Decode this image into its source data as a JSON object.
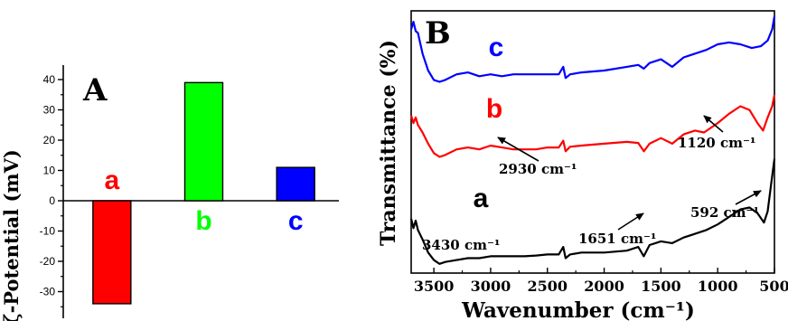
{
  "chart_data": [
    {
      "panel_label": "A",
      "type": "bar",
      "categories": [
        "a",
        "b",
        "c"
      ],
      "values": [
        -34,
        39,
        11
      ],
      "colors": [
        "#ff0000",
        "#00ff00",
        "#0000ff"
      ],
      "ylabel": "ζ-Potential (mV)",
      "ylim": [
        -40,
        45
      ],
      "yticks": [
        "40",
        "30",
        "20",
        "10",
        "0",
        "-10",
        "-20",
        "-30"
      ],
      "grid": false
    },
    {
      "panel_label": "B",
      "type": "line",
      "xlabel": "Wavenumber (cm⁻¹)",
      "ylabel": "Transmittance (%)",
      "xlim": [
        3700,
        500
      ],
      "xticks": [
        "3500",
        "3000",
        "2500",
        "2000",
        "1500",
        "1000",
        "500"
      ],
      "grid": false,
      "series": [
        {
          "name": "c",
          "color": "#0000ff",
          "points": [
            [
              3700,
              3.75
            ],
            [
              3680,
              3.95
            ],
            [
              3660,
              3.7
            ],
            [
              3640,
              3.65
            ],
            [
              3600,
              3.1
            ],
            [
              3550,
              2.65
            ],
            [
              3500,
              2.4
            ],
            [
              3450,
              2.35
            ],
            [
              3400,
              2.4
            ],
            [
              3300,
              2.55
            ],
            [
              3200,
              2.6
            ],
            [
              3100,
              2.5
            ],
            [
              3000,
              2.55
            ],
            [
              2900,
              2.5
            ],
            [
              2800,
              2.55
            ],
            [
              2700,
              2.55
            ],
            [
              2600,
              2.55
            ],
            [
              2500,
              2.55
            ],
            [
              2400,
              2.55
            ],
            [
              2360,
              2.75
            ],
            [
              2340,
              2.45
            ],
            [
              2300,
              2.55
            ],
            [
              2200,
              2.6
            ],
            [
              2000,
              2.65
            ],
            [
              1800,
              2.75
            ],
            [
              1700,
              2.8
            ],
            [
              1650,
              2.7
            ],
            [
              1600,
              2.85
            ],
            [
              1500,
              2.95
            ],
            [
              1400,
              2.75
            ],
            [
              1300,
              3.0
            ],
            [
              1200,
              3.1
            ],
            [
              1100,
              3.2
            ],
            [
              1000,
              3.35
            ],
            [
              900,
              3.4
            ],
            [
              800,
              3.35
            ],
            [
              700,
              3.25
            ],
            [
              620,
              3.3
            ],
            [
              560,
              3.45
            ],
            [
              520,
              3.75
            ],
            [
              500,
              4.1
            ]
          ]
        },
        {
          "name": "b",
          "color": "#ff0000",
          "points": [
            [
              3700,
              1.45
            ],
            [
              3680,
              1.25
            ],
            [
              3660,
              1.4
            ],
            [
              3640,
              1.2
            ],
            [
              3600,
              1.0
            ],
            [
              3550,
              0.7
            ],
            [
              3500,
              0.45
            ],
            [
              3450,
              0.35
            ],
            [
              3400,
              0.4
            ],
            [
              3300,
              0.55
            ],
            [
              3200,
              0.6
            ],
            [
              3100,
              0.55
            ],
            [
              3000,
              0.65
            ],
            [
              2900,
              0.6
            ],
            [
              2800,
              0.55
            ],
            [
              2700,
              0.55
            ],
            [
              2600,
              0.55
            ],
            [
              2500,
              0.6
            ],
            [
              2400,
              0.6
            ],
            [
              2360,
              0.78
            ],
            [
              2340,
              0.5
            ],
            [
              2300,
              0.62
            ],
            [
              2200,
              0.65
            ],
            [
              2000,
              0.7
            ],
            [
              1800,
              0.75
            ],
            [
              1700,
              0.72
            ],
            [
              1650,
              0.5
            ],
            [
              1600,
              0.7
            ],
            [
              1500,
              0.85
            ],
            [
              1400,
              0.7
            ],
            [
              1300,
              0.95
            ],
            [
              1200,
              1.05
            ],
            [
              1120,
              1.0
            ],
            [
              1000,
              1.25
            ],
            [
              900,
              1.5
            ],
            [
              800,
              1.7
            ],
            [
              720,
              1.6
            ],
            [
              650,
              1.25
            ],
            [
              600,
              1.05
            ],
            [
              560,
              1.4
            ],
            [
              520,
              1.7
            ],
            [
              500,
              2.0
            ]
          ]
        },
        {
          "name": "a",
          "color": "#000000",
          "points": [
            [
              3700,
              -1.3
            ],
            [
              3680,
              -1.55
            ],
            [
              3660,
              -1.35
            ],
            [
              3640,
              -1.6
            ],
            [
              3600,
              -1.85
            ],
            [
              3550,
              -2.2
            ],
            [
              3500,
              -2.4
            ],
            [
              3450,
              -2.5
            ],
            [
              3400,
              -2.45
            ],
            [
              3300,
              -2.4
            ],
            [
              3200,
              -2.35
            ],
            [
              3100,
              -2.35
            ],
            [
              3000,
              -2.3
            ],
            [
              2900,
              -2.3
            ],
            [
              2800,
              -2.3
            ],
            [
              2700,
              -2.3
            ],
            [
              2600,
              -2.28
            ],
            [
              2500,
              -2.25
            ],
            [
              2400,
              -2.25
            ],
            [
              2360,
              -2.05
            ],
            [
              2340,
              -2.35
            ],
            [
              2300,
              -2.25
            ],
            [
              2200,
              -2.2
            ],
            [
              2000,
              -2.2
            ],
            [
              1800,
              -2.15
            ],
            [
              1700,
              -2.05
            ],
            [
              1651,
              -2.3
            ],
            [
              1600,
              -2.0
            ],
            [
              1500,
              -1.9
            ],
            [
              1400,
              -1.95
            ],
            [
              1300,
              -1.8
            ],
            [
              1200,
              -1.7
            ],
            [
              1100,
              -1.6
            ],
            [
              1000,
              -1.45
            ],
            [
              900,
              -1.25
            ],
            [
              800,
              -1.05
            ],
            [
              720,
              -1.0
            ],
            [
              650,
              -1.15
            ],
            [
              592,
              -1.4
            ],
            [
              560,
              -1.1
            ],
            [
              530,
              -0.4
            ],
            [
              500,
              0.3
            ]
          ]
        }
      ],
      "annotations": [
        "3430 cm⁻¹",
        "2930 cm⁻¹",
        "1651 cm⁻¹",
        "1120 cm⁻¹",
        "592 cm⁻¹"
      ]
    }
  ]
}
